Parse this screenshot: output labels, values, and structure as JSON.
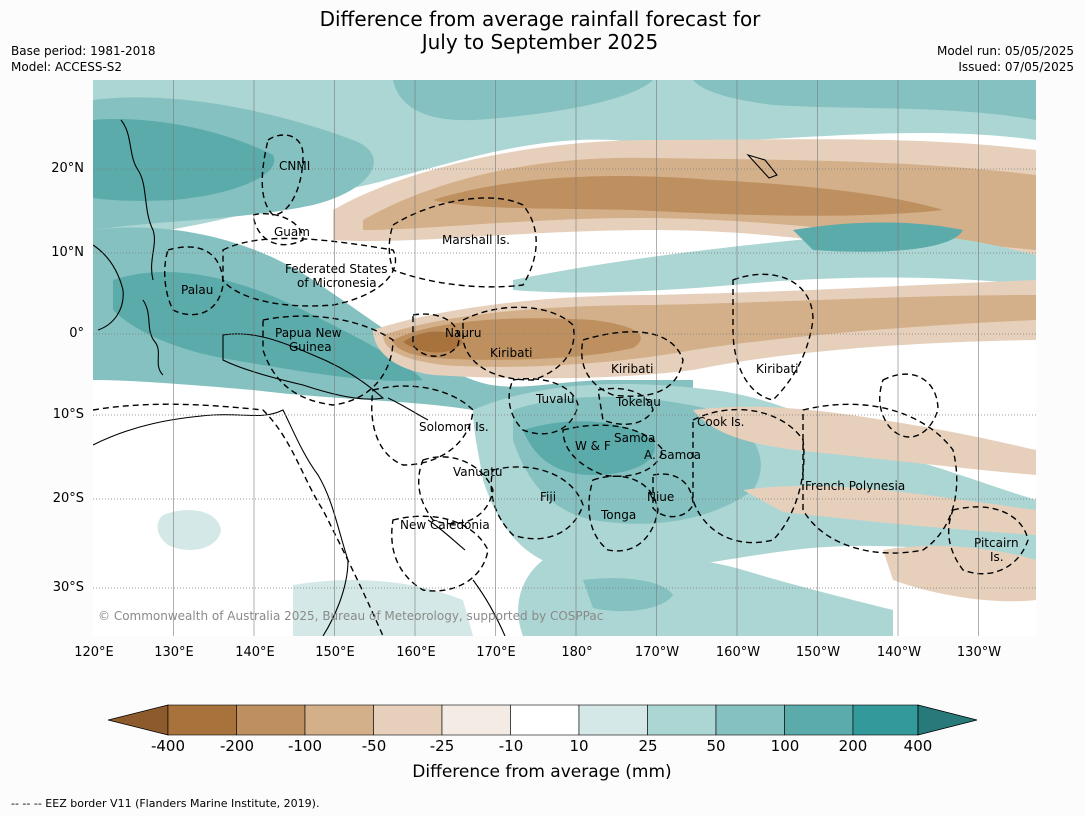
{
  "title_line1": "Difference from average rainfall forecast for",
  "title_line2": "July to September 2025",
  "meta_left": [
    "Base period: 1981-2018",
    "Model: ACCESS-S2"
  ],
  "meta_right": [
    "Model run: 05/05/2025",
    "Issued: 07/05/2025"
  ],
  "lat_labels": [
    "20°N",
    "10°N",
    "0°",
    "10°S",
    "20°S",
    "30°S"
  ],
  "lon_labels": [
    "120°E",
    "130°E",
    "140°E",
    "150°E",
    "160°E",
    "170°E",
    "180°",
    "170°W",
    "160°W",
    "150°W",
    "140°W",
    "130°W"
  ],
  "places": {
    "cnmi": "CNMI",
    "guam": "Guam",
    "marshall": "Marshall Is.",
    "fsm1": "Federated States",
    "fsm2": "of Micronesia",
    "palau": "Palau",
    "png1": "Papua New",
    "png2": "Guinea",
    "nauru": "Nauru",
    "kiribati_w": "Kiribati",
    "kiribati_c": "Kiribati",
    "kiribati_e": "Kiribati",
    "tuvalu": "Tuvalu",
    "tokelau": "Tokelau",
    "solomon": "Solomon Is.",
    "wf": "W & F",
    "samoa": "Samoa",
    "asamoa": "A. Samoa",
    "cook": "Cook Is.",
    "vanuatu": "Vanuatu",
    "fiji": "Fiji",
    "niue": "Niue",
    "tonga": "Tonga",
    "newcal": "New Caledonia",
    "frpoly": "French Polynesia",
    "pitcairn1": "Pitcairn",
    "pitcairn2": "Is."
  },
  "copyright": "© Commonwealth of Australia 2025, Bureau of Meteorology, supported by COSPPac",
  "colorbar": {
    "ticks": [
      "-400",
      "-200",
      "-100",
      "-50",
      "-25",
      "-10",
      "10",
      "25",
      "50",
      "100",
      "200",
      "400"
    ],
    "colors": [
      "#8c5a2b",
      "#a8723c",
      "#be905f",
      "#d4b08a",
      "#e6d0bb",
      "#f3ebe4",
      "#ffffff",
      "#d4e9e7",
      "#acd6d3",
      "#84c1c0",
      "#5aabaa",
      "#34999a",
      "#277a79"
    ],
    "title": "Difference from average (mm)"
  },
  "footer": "--  --  -- EEZ border V11 (Flanders Marine Institute, 2019)."
}
